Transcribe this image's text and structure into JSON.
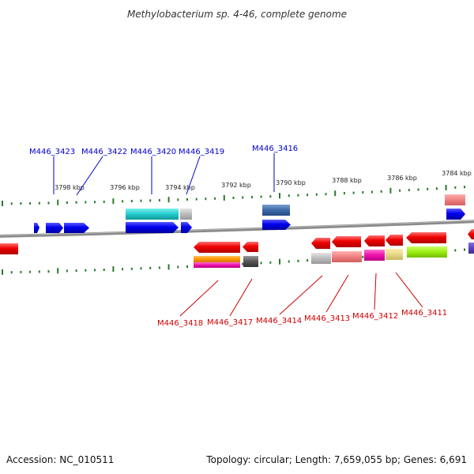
{
  "title": "Methylobacterium sp. 4-46, complete genome",
  "footer": {
    "accession": "Accession: NC_010511",
    "summary": "Topology: circular; Length: 7,659,055 bp; Genes: 6,691"
  },
  "kbp_ticks": [
    "3798 kbp",
    "3796 kbp",
    "3794 kbp",
    "3792 kbp",
    "3790 kbp",
    "3788 kbp",
    "3786 kbp",
    "3784 kbp"
  ],
  "colors": {
    "backbone": "#888888",
    "forward_label": "#0000cc",
    "reverse_label": "#cc0000",
    "tick": "#2a7a2a"
  },
  "forward_gene_labels": [
    "M446_3423",
    "M446_3422",
    "M446_3420",
    "M446_3419",
    "M446_3416"
  ],
  "reverse_gene_labels": [
    "M446_3418",
    "M446_3417",
    "M446_3414",
    "M446_3413",
    "M446_3412",
    "M446_3411"
  ]
}
